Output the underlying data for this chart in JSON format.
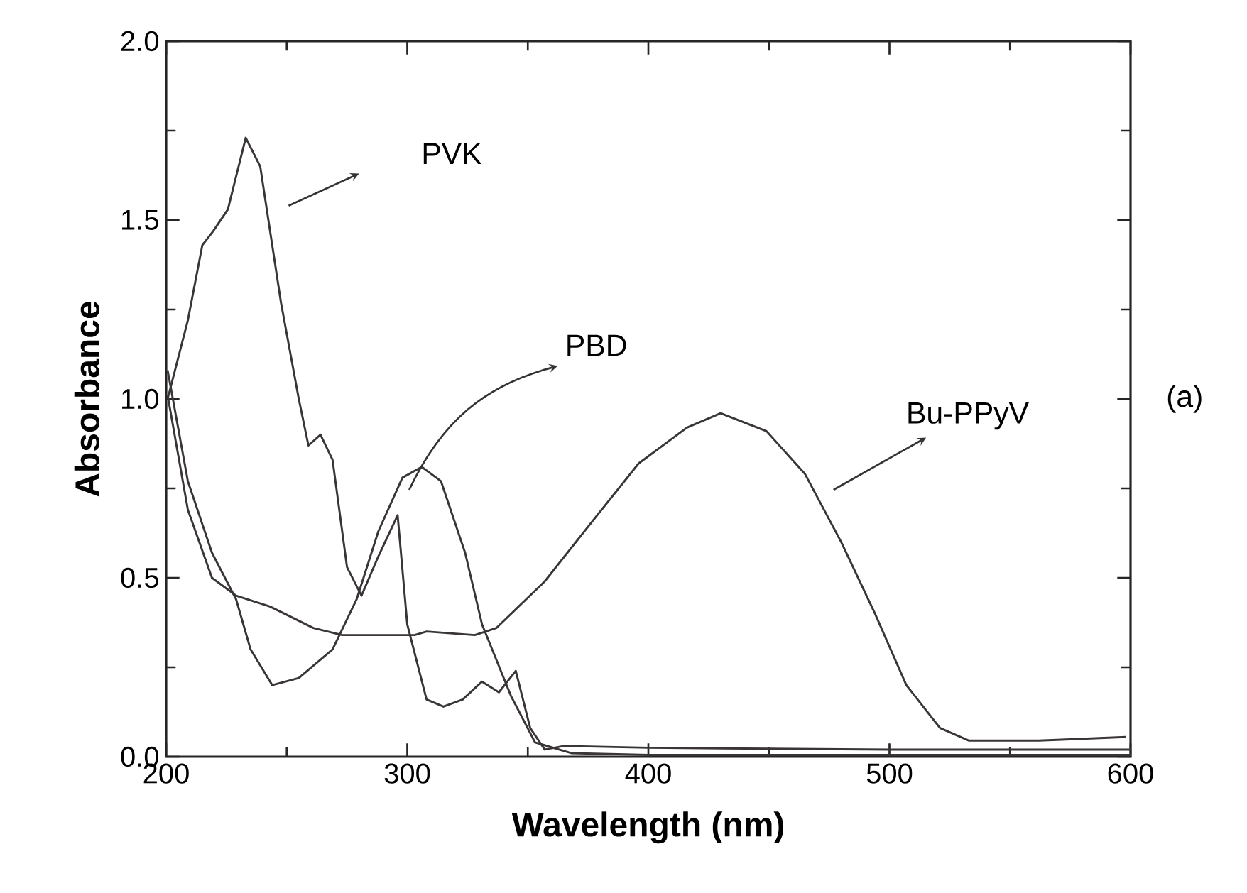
{
  "chart_data": {
    "type": "line",
    "xlabel": "Wavelength (nm)",
    "ylabel": "Absorbance",
    "xlim": [
      200,
      600
    ],
    "ylim": [
      0,
      2
    ],
    "xticks": [
      200,
      300,
      400,
      500,
      600
    ],
    "yticks": [
      {
        "value": 0,
        "label": "0.0"
      },
      0.5,
      {
        "value": 1,
        "label": "1.0"
      },
      1.5,
      {
        "value": 2,
        "label": "2.0"
      }
    ],
    "series": [
      {
        "color": "#3a3536",
        "x": [
          200.6,
          209,
          215,
          219.6,
          225.6,
          233,
          239,
          247.6,
          255,
          259,
          264,
          269,
          275,
          281,
          288,
          296,
          300,
          308,
          315,
          323,
          331,
          338,
          345,
          351,
          357,
          365,
          400,
          500,
          600
        ],
        "values": [
          1.0,
          1.22,
          1.43,
          1.47,
          1.53,
          1.73,
          1.65,
          1.27,
          1.0,
          0.87,
          0.9,
          0.83,
          0.53,
          0.45,
          0.56,
          0.675,
          0.37,
          0.16,
          0.14,
          0.16,
          0.21,
          0.18,
          0.24,
          0.08,
          0.02,
          0.03,
          0.025,
          0.02,
          0.02
        ]
      },
      {
        "color": "#3a3536",
        "x": [
          200.6,
          209,
          219,
          229,
          235,
          244,
          255,
          269,
          279,
          288,
          298,
          306,
          314,
          324,
          331,
          343,
          353,
          368,
          400,
          500,
          600
        ],
        "values": [
          1.08,
          0.77,
          0.57,
          0.44,
          0.3,
          0.2,
          0.22,
          0.3,
          0.44,
          0.63,
          0.78,
          0.81,
          0.77,
          0.57,
          0.37,
          0.17,
          0.04,
          0.01,
          0.005,
          0.005,
          0.005
        ]
      },
      {
        "color": "#3a3536",
        "x": [
          200.6,
          209,
          219,
          229,
          243,
          249,
          261,
          273,
          298,
          303,
          308,
          328,
          337,
          357,
          377,
          396,
          416,
          430,
          449,
          465,
          480,
          494,
          507,
          521,
          533,
          562,
          598
        ],
        "values": [
          1.01,
          0.69,
          0.5,
          0.45,
          0.42,
          0.4,
          0.36,
          0.34,
          0.34,
          0.34,
          0.35,
          0.34,
          0.36,
          0.49,
          0.66,
          0.82,
          0.92,
          0.96,
          0.91,
          0.79,
          0.6,
          0.4,
          0.2,
          0.08,
          0.045,
          0.045,
          0.055
        ]
      }
    ],
    "annotations": [
      "PVK",
      "PBD",
      "Bu-PPyV",
      "(a)"
    ]
  }
}
